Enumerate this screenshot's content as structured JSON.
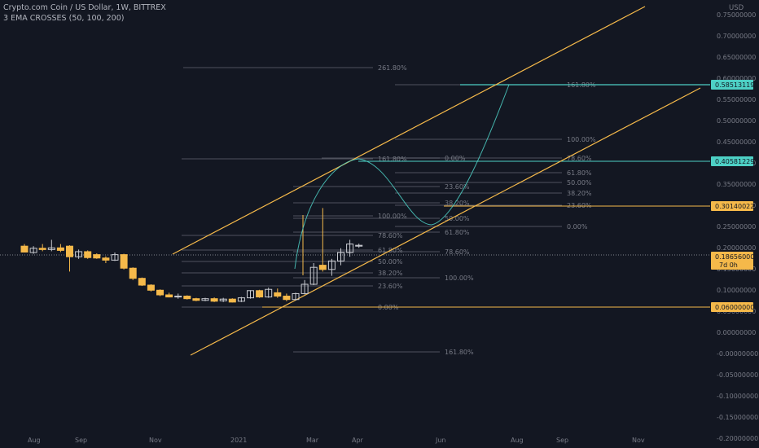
{
  "header": {
    "symbol_line": "Crypto.com Coin / US Dollar, 1W, BITTREX",
    "indicator_line": "3 EMA CROSSES (50, 100, 200)"
  },
  "axis": {
    "currency": "USD",
    "ticks": [
      "0.75000000",
      "0.70000000",
      "0.65000000",
      "0.60000000",
      "0.55000000",
      "0.50000000",
      "0.45000000",
      "0.40000000",
      "0.35000000",
      "0.30000000",
      "0.25000000",
      "0.20000000",
      "0.15000000",
      "0.10000000",
      "0.05000000",
      "0.00000000",
      "-0.00000000",
      "-0.05000000",
      "-0.10000000",
      "-0.15000000",
      "-0.20000000"
    ],
    "time_labels": [
      "Aug",
      "Sep",
      "Nov",
      "2021",
      "Mar",
      "Apr",
      "Jun",
      "Aug",
      "Sep",
      "Nov"
    ]
  },
  "price_tags": [
    {
      "text": "0.58513119",
      "bg": "#4dd0c5",
      "fg": "#131722"
    },
    {
      "text": "0.40581229",
      "bg": "#4dd0c5",
      "fg": "#131722"
    },
    {
      "text": "0.30140022",
      "bg": "#f5b94a",
      "fg": "#131722"
    },
    {
      "text": "0.18656000",
      "sub": "7d 0h",
      "bg": "#f5b94a",
      "fg": "#131722"
    },
    {
      "text": "0.06000000",
      "bg": "#f5b94a",
      "fg": "#131722"
    }
  ],
  "fib_labels": [
    "261.80%",
    "161.80%",
    "100.00%",
    "161.80%",
    "0.00%",
    "78.60%",
    "61.80%",
    "50.00%",
    "23.60%",
    "38.20%",
    "38.20%",
    "23.60%",
    "100.00%",
    "50.00%",
    "0.00%",
    "78.60%",
    "61.80%",
    "61.80%",
    "78.60%",
    "50.00%",
    "38.20%",
    "100.00%",
    "23.60%",
    "0.00%",
    "161.80%"
  ],
  "colors": {
    "background": "#131722",
    "candle_up": "#c9cbd1",
    "candle_down": "#f5b94a",
    "channel": "#f5b94a",
    "projection": "#4dd0c5",
    "fib": "#787b86"
  },
  "chart_data": {
    "type": "candlestick",
    "title": "Crypto.com Coin / US Dollar, 1W, BITTREX",
    "ylabel": "USD",
    "ylim": [
      -0.21,
      0.76
    ],
    "candles": [
      {
        "o": 0.19,
        "h": 0.195,
        "l": 0.175,
        "c": 0.176
      },
      {
        "o": 0.175,
        "h": 0.19,
        "l": 0.172,
        "c": 0.185
      },
      {
        "o": 0.185,
        "h": 0.195,
        "l": 0.178,
        "c": 0.182
      },
      {
        "o": 0.182,
        "h": 0.205,
        "l": 0.178,
        "c": 0.186
      },
      {
        "o": 0.186,
        "h": 0.195,
        "l": 0.176,
        "c": 0.18
      },
      {
        "o": 0.19,
        "h": 0.192,
        "l": 0.13,
        "c": 0.165
      },
      {
        "o": 0.165,
        "h": 0.182,
        "l": 0.16,
        "c": 0.177
      },
      {
        "o": 0.177,
        "h": 0.18,
        "l": 0.16,
        "c": 0.163
      },
      {
        "o": 0.17,
        "h": 0.173,
        "l": 0.16,
        "c": 0.162
      },
      {
        "o": 0.162,
        "h": 0.166,
        "l": 0.15,
        "c": 0.157
      },
      {
        "o": 0.157,
        "h": 0.175,
        "l": 0.155,
        "c": 0.17
      },
      {
        "o": 0.17,
        "h": 0.172,
        "l": 0.135,
        "c": 0.138
      },
      {
        "o": 0.138,
        "h": 0.14,
        "l": 0.11,
        "c": 0.114
      },
      {
        "o": 0.114,
        "h": 0.116,
        "l": 0.096,
        "c": 0.098
      },
      {
        "o": 0.098,
        "h": 0.1,
        "l": 0.083,
        "c": 0.086
      },
      {
        "o": 0.086,
        "h": 0.088,
        "l": 0.072,
        "c": 0.075
      },
      {
        "o": 0.075,
        "h": 0.08,
        "l": 0.069,
        "c": 0.07
      },
      {
        "o": 0.07,
        "h": 0.078,
        "l": 0.066,
        "c": 0.072
      },
      {
        "o": 0.072,
        "h": 0.074,
        "l": 0.064,
        "c": 0.066
      },
      {
        "o": 0.066,
        "h": 0.068,
        "l": 0.06,
        "c": 0.062
      },
      {
        "o": 0.062,
        "h": 0.068,
        "l": 0.06,
        "c": 0.066
      },
      {
        "o": 0.066,
        "h": 0.069,
        "l": 0.058,
        "c": 0.06
      },
      {
        "o": 0.061,
        "h": 0.068,
        "l": 0.058,
        "c": 0.065
      },
      {
        "o": 0.065,
        "h": 0.067,
        "l": 0.057,
        "c": 0.058
      },
      {
        "o": 0.06,
        "h": 0.07,
        "l": 0.058,
        "c": 0.068
      },
      {
        "o": 0.068,
        "h": 0.086,
        "l": 0.066,
        "c": 0.085
      },
      {
        "o": 0.085,
        "h": 0.087,
        "l": 0.068,
        "c": 0.07
      },
      {
        "o": 0.07,
        "h": 0.092,
        "l": 0.068,
        "c": 0.088
      },
      {
        "o": 0.08,
        "h": 0.09,
        "l": 0.068,
        "c": 0.072
      },
      {
        "o": 0.072,
        "h": 0.078,
        "l": 0.06,
        "c": 0.064
      },
      {
        "o": 0.064,
        "h": 0.08,
        "l": 0.062,
        "c": 0.078
      },
      {
        "o": 0.078,
        "h": 0.11,
        "l": 0.076,
        "c": 0.1
      },
      {
        "o": 0.1,
        "h": 0.15,
        "l": 0.098,
        "c": 0.14
      },
      {
        "o": 0.145,
        "h": 0.28,
        "l": 0.13,
        "c": 0.135
      },
      {
        "o": 0.135,
        "h": 0.16,
        "l": 0.12,
        "c": 0.155
      },
      {
        "o": 0.155,
        "h": 0.185,
        "l": 0.145,
        "c": 0.175
      },
      {
        "o": 0.175,
        "h": 0.205,
        "l": 0.165,
        "c": 0.195
      },
      {
        "o": 0.19,
        "h": 0.196,
        "l": 0.186,
        "c": 0.192
      }
    ],
    "annotations": [
      "261.80%",
      "161.80%",
      "100.00%",
      "78.60%",
      "61.80%",
      "50.00%",
      "38.20%",
      "23.60%",
      "0.00%"
    ]
  }
}
